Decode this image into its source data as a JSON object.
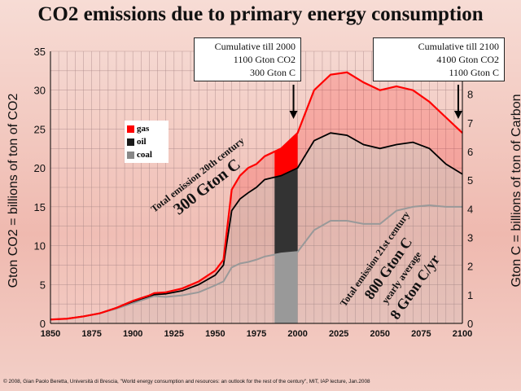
{
  "title": "CO2 emissions due to primary energy consumption",
  "footer": "© 2008, Gian Paolo Beretta, Università di Brescia, \"World energy consumption and resources: an outlook for the rest of the century\", MIT, IAP lecture, Jan.2008",
  "callouts": {
    "c2000": {
      "line1": "Cumulative till 2000",
      "line2": "1100 Gton CO2",
      "line3": "300 Gton C"
    },
    "c2100": {
      "line1": "Cumulative till 2100",
      "line2": "4100 Gton CO2",
      "line3": "1100 Gton C"
    }
  },
  "annotations": {
    "a20": {
      "line1": "Total emission 20th century",
      "line2": "300 Gton C"
    },
    "a21": {
      "line1": "Total emission 21st century",
      "line2": "800 Gton C",
      "line3": "yearly average",
      "line4": "8 Gton C/yr"
    }
  },
  "colors": {
    "gas": "#ff0000",
    "oil": "#1a1a1a",
    "coal": "#888888"
  },
  "chart_data": {
    "type": "area",
    "xlabel": "",
    "ylabel": "Gton CO2 = billions of ton of CO2",
    "ylabel_right": "Gton C = billions of ton of Carbon",
    "xlim": [
      1850,
      2100
    ],
    "ylim": [
      0,
      35
    ],
    "ylim_right": [
      0,
      9.5
    ],
    "x_ticks": [
      1850,
      1875,
      1900,
      1925,
      1950,
      1975,
      2000,
      2025,
      2050,
      2075,
      2100
    ],
    "y_ticks": [
      0,
      5,
      10,
      15,
      20,
      25,
      30,
      35
    ],
    "y_ticks_right": [
      0,
      1,
      2,
      3,
      4,
      5,
      6,
      7,
      8
    ],
    "grid": true,
    "legend": [
      {
        "name": "gas",
        "color": "#ff0000"
      },
      {
        "name": "oil",
        "color": "#1a1a1a"
      },
      {
        "name": "coal",
        "color": "#888888"
      }
    ],
    "series": [
      {
        "name": "coal",
        "x": [
          1850,
          1860,
          1870,
          1880,
          1890,
          1900,
          1910,
          1913,
          1920,
          1930,
          1940,
          1950,
          1955,
          1960,
          1965,
          1970,
          1975,
          1980,
          1990,
          2000,
          2010,
          2020,
          2030,
          2040,
          2050,
          2060,
          2070,
          2080,
          2090,
          2100
        ],
        "values": [
          0.5,
          0.6,
          0.9,
          1.3,
          1.9,
          2.6,
          3.3,
          3.5,
          3.4,
          3.6,
          4.0,
          4.9,
          5.4,
          7.2,
          7.7,
          7.9,
          8.2,
          8.6,
          9.0,
          9.2,
          12.0,
          13.2,
          13.2,
          12.8,
          12.8,
          14.5,
          15.0,
          15.2,
          15.0,
          15.0
        ]
      },
      {
        "name": "oil",
        "x": [
          1850,
          1860,
          1870,
          1880,
          1890,
          1900,
          1910,
          1913,
          1920,
          1930,
          1940,
          1950,
          1955,
          1960,
          1965,
          1970,
          1975,
          1980,
          1990,
          2000,
          2010,
          2020,
          2030,
          2040,
          2050,
          2060,
          2070,
          2080,
          2090,
          2100
        ],
        "values": [
          0.5,
          0.6,
          0.9,
          1.3,
          2.0,
          2.8,
          3.5,
          3.7,
          3.8,
          4.2,
          5.0,
          6.2,
          7.5,
          14.5,
          16.0,
          16.8,
          17.5,
          18.5,
          19.0,
          20.0,
          23.5,
          24.5,
          24.2,
          23.0,
          22.5,
          23.0,
          23.3,
          22.5,
          20.5,
          19.2
        ]
      },
      {
        "name": "gas",
        "x": [
          1850,
          1860,
          1870,
          1880,
          1890,
          1900,
          1910,
          1913,
          1920,
          1930,
          1940,
          1950,
          1955,
          1960,
          1965,
          1970,
          1975,
          1980,
          1990,
          2000,
          2010,
          2020,
          2030,
          2040,
          2050,
          2060,
          2070,
          2080,
          2090,
          2100
        ],
        "values": [
          0.5,
          0.6,
          0.9,
          1.3,
          2.0,
          2.9,
          3.6,
          3.9,
          4.0,
          4.5,
          5.4,
          6.8,
          8.2,
          17.2,
          19.0,
          20.0,
          20.5,
          21.5,
          22.5,
          24.5,
          30.0,
          32.0,
          32.3,
          31.0,
          30.0,
          30.5,
          30.0,
          28.5,
          26.5,
          24.5
        ]
      }
    ]
  }
}
